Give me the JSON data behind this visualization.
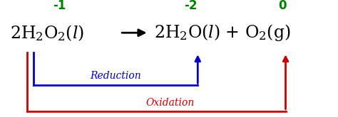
{
  "bg_color": "#ffffff",
  "green_color": "#008000",
  "blue_color": "#0000cc",
  "red_color": "#cc0000",
  "black_color": "#000000",
  "label_reduction": "Reduction",
  "label_oxidation": "Oxidation",
  "ox1": "-1",
  "ox2": "-2",
  "ox3": "0",
  "figsize": [
    4.74,
    1.65
  ],
  "dpi": 100
}
